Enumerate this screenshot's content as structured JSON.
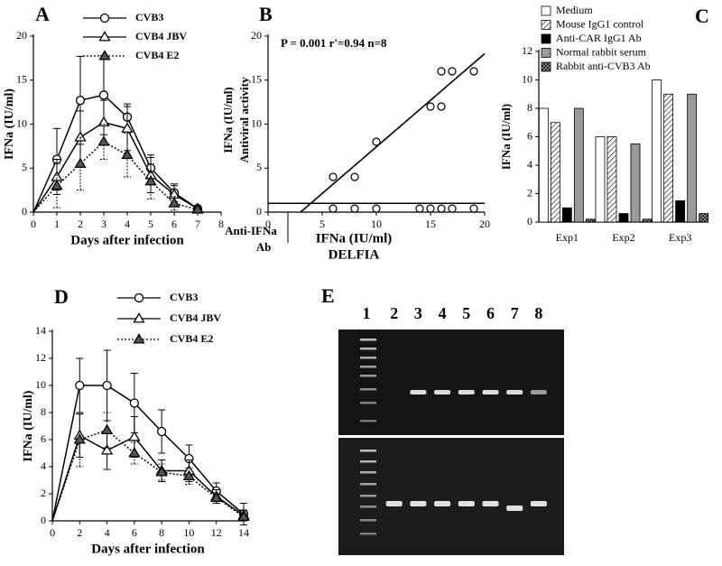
{
  "chart_data": [
    {
      "type": "line",
      "title": "A",
      "xlabel": "Days after infection",
      "ylabel": "IFNa (IU/ml)",
      "x": [
        0,
        1,
        2,
        3,
        4,
        5,
        6,
        7
      ],
      "xlim": [
        0,
        8
      ],
      "xticks": [
        0,
        1,
        2,
        3,
        4,
        5,
        6,
        7,
        8
      ],
      "ylim": [
        0,
        20
      ],
      "yticks": [
        0,
        5,
        10,
        15,
        20
      ],
      "series": [
        {
          "name": "CVB3",
          "color": "#000000",
          "marker": "circle",
          "linestyle": "solid",
          "values": [
            0,
            6,
            12.7,
            13.3,
            10.8,
            5,
            2.2,
            0.4
          ],
          "errors": [
            null,
            3.5,
            5,
            4.5,
            1.5,
            1.5,
            1,
            0.3
          ]
        },
        {
          "name": "CVB4 JBV",
          "color": "#000000",
          "marker": "triangle",
          "linestyle": "solid",
          "values": [
            0,
            4,
            8.5,
            10.2,
            9.5,
            4.2,
            2,
            0.4
          ],
          "errors": [
            null,
            2,
            3,
            2.5,
            2.5,
            2,
            1,
            0.3
          ]
        },
        {
          "name": "CVB4 E2",
          "color": "#000000",
          "marker": "triangle-filled",
          "linestyle": "dotted",
          "values": [
            0,
            3,
            5.5,
            8,
            6.5,
            3.5,
            1,
            0.3
          ],
          "errors": [
            null,
            2.5,
            3,
            2,
            2.5,
            2,
            0.8,
            0.2
          ]
        }
      ]
    },
    {
      "type": "scatter",
      "title": "B",
      "annotation": "P = 0.001 r'=0.94 n=8",
      "note": [
        "Anti-IFNa",
        "Ab"
      ],
      "xlabel": [
        "IFNa (IU/ml)",
        "DELFIA"
      ],
      "ylabel": [
        "IFNa (IU/ml)",
        "Antiviral activity"
      ],
      "xlim": [
        0,
        20
      ],
      "xticks": [
        0,
        5,
        10,
        15,
        20
      ],
      "ylim": [
        0,
        20
      ],
      "yticks": [
        0,
        5,
        10,
        15,
        20
      ],
      "series": [
        {
          "color": "#000000",
          "mode": "markers",
          "x": [
            6,
            8,
            10,
            15,
            16,
            16,
            17,
            19
          ],
          "values": [
            4,
            4,
            8,
            12,
            12,
            16,
            16,
            16
          ]
        },
        {
          "color": "#000000",
          "mode": "markers",
          "x": [
            6,
            8,
            10,
            14,
            15,
            16,
            17,
            19
          ],
          "values": [
            0.4,
            0.4,
            0.4,
            0.4,
            0.4,
            0.4,
            0.4,
            0.4
          ]
        },
        {
          "color": "#000000",
          "mode": "line",
          "x": [
            3,
            20
          ],
          "values": [
            0,
            18
          ]
        },
        {
          "color": "#000000",
          "mode": "line",
          "x": [
            0,
            20
          ],
          "values": [
            1,
            1
          ]
        }
      ]
    },
    {
      "type": "bar",
      "title": "C",
      "ylabel": "IFNa (IU/ml)",
      "categories": [
        "Exp1",
        "Exp2",
        "Exp3"
      ],
      "ylim": [
        0,
        12
      ],
      "yticks": [
        0,
        2,
        4,
        6,
        8,
        10,
        12
      ],
      "series": [
        {
          "name": "Medium",
          "color": "#ffffff",
          "pattern": "none",
          "values": [
            8,
            6,
            10
          ]
        },
        {
          "name": "Mouse IgG1 control",
          "color": "#ffffff",
          "pattern": "hatch",
          "values": [
            7,
            6,
            9
          ]
        },
        {
          "name": "Anti-CAR IgG1 Ab",
          "color": "#000000",
          "pattern": "none",
          "values": [
            1,
            0.6,
            1.5
          ]
        },
        {
          "name": "Normal rabbit serum",
          "color": "#9a9a9a",
          "pattern": "none",
          "values": [
            8,
            5.5,
            9
          ]
        },
        {
          "name": "Rabbit anti-CVB3 Ab",
          "color": "#555555",
          "pattern": "check",
          "values": [
            0.2,
            0.2,
            0.6
          ]
        }
      ]
    },
    {
      "type": "line",
      "title": "D",
      "xlabel": "Days after infection",
      "ylabel": "IFNa (IU/ml)",
      "x": [
        0,
        2,
        4,
        6,
        8,
        10,
        12,
        14
      ],
      "xlim": [
        0,
        14
      ],
      "xticks": [
        0,
        2,
        4,
        6,
        8,
        10,
        12,
        14
      ],
      "ylim": [
        0,
        14
      ],
      "yticks": [
        0,
        2,
        4,
        6,
        8,
        10,
        12,
        14
      ],
      "series": [
        {
          "name": "CVB3",
          "color": "#000000",
          "marker": "circle",
          "linestyle": "solid",
          "values": [
            0,
            10,
            10,
            8.7,
            6.6,
            4.6,
            2.2,
            0.5
          ],
          "errors": [
            null,
            2,
            2.6,
            2.2,
            1.6,
            1,
            0.6,
            0.8
          ]
        },
        {
          "name": "CVB4 JBV",
          "color": "#000000",
          "marker": "triangle",
          "linestyle": "solid",
          "values": [
            0,
            6.3,
            5.2,
            6.2,
            3.7,
            3.7,
            1.8,
            0.4
          ],
          "errors": [
            null,
            1.6,
            1.4,
            1.5,
            0.8,
            0.8,
            0.5,
            0.4
          ]
        },
        {
          "name": "CVB4 E2",
          "color": "#000000",
          "marker": "triangle-filled",
          "linestyle": "dotted",
          "values": [
            0,
            6,
            6.7,
            5,
            3.6,
            3.3,
            1.7,
            0.3
          ],
          "errors": [
            null,
            2,
            1.3,
            0.8,
            0.6,
            0.6,
            0.4,
            0.3
          ]
        }
      ]
    },
    {
      "type": "gel",
      "title": "E",
      "categories": [
        "1",
        "2",
        "3",
        "4",
        "5",
        "6",
        "7",
        "8"
      ]
    }
  ]
}
